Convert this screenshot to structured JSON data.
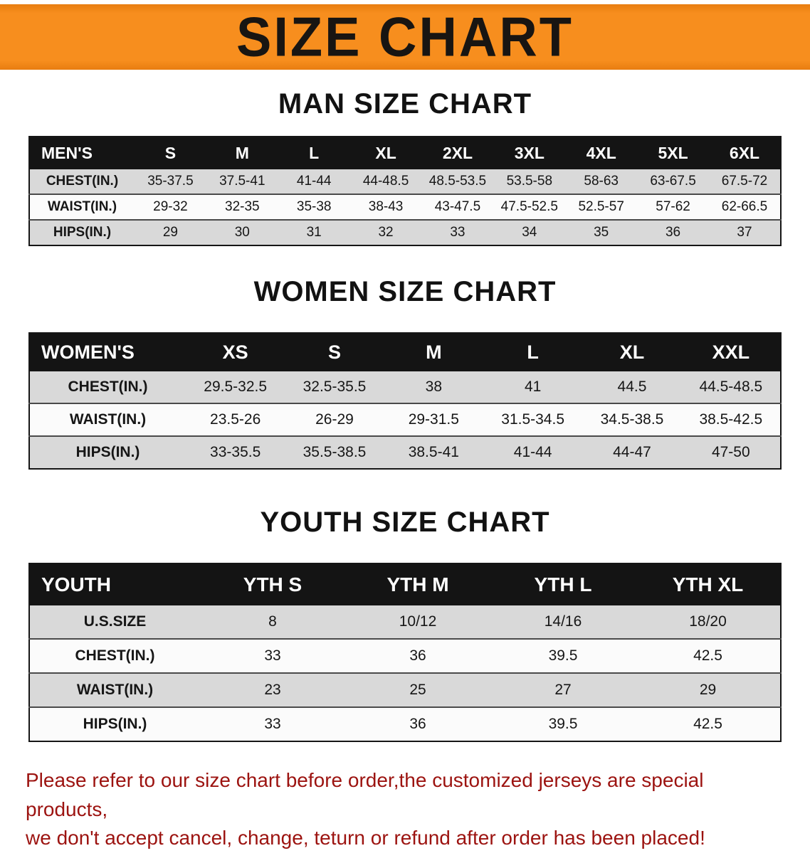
{
  "banner": {
    "title": "SIZE CHART",
    "bg_color": "#f78e1e",
    "text_color": "#181512"
  },
  "sections": {
    "men": {
      "heading": "MAN SIZE CHART",
      "table": {
        "header": [
          "MEN'S",
          "S",
          "M",
          "L",
          "XL",
          "2XL",
          "3XL",
          "4XL",
          "5XL",
          "6XL"
        ],
        "rows": [
          [
            "CHEST(IN.)",
            "35-37.5",
            "37.5-41",
            "41-44",
            "44-48.5",
            "48.5-53.5",
            "53.5-58",
            "58-63",
            "63-67.5",
            "67.5-72"
          ],
          [
            "WAIST(IN.)",
            "29-32",
            "32-35",
            "35-38",
            "38-43",
            "43-47.5",
            "47.5-52.5",
            "52.5-57",
            "57-62",
            "62-66.5"
          ],
          [
            "HIPS(IN.)",
            "29",
            "30",
            "31",
            "32",
            "33",
            "34",
            "35",
            "36",
            "37"
          ]
        ]
      }
    },
    "women": {
      "heading": "WOMEN SIZE CHART",
      "table": {
        "header": [
          "WOMEN'S",
          "XS",
          "S",
          "M",
          "L",
          "XL",
          "XXL"
        ],
        "rows": [
          [
            "CHEST(IN.)",
            "29.5-32.5",
            "32.5-35.5",
            "38",
            "41",
            "44.5",
            "44.5-48.5"
          ],
          [
            "WAIST(IN.)",
            "23.5-26",
            "26-29",
            "29-31.5",
            "31.5-34.5",
            "34.5-38.5",
            "38.5-42.5"
          ],
          [
            "HIPS(IN.)",
            "33-35.5",
            "35.5-38.5",
            "38.5-41",
            "41-44",
            "44-47",
            "47-50"
          ]
        ]
      }
    },
    "youth": {
      "heading": "YOUTH SIZE CHART",
      "table": {
        "header": [
          "YOUTH",
          "YTH S",
          "YTH M",
          "YTH L",
          "YTH XL"
        ],
        "rows": [
          [
            "U.S.SIZE",
            "8",
            "10/12",
            "14/16",
            "18/20"
          ],
          [
            "CHEST(IN.)",
            "33",
            "36",
            "39.5",
            "42.5"
          ],
          [
            "WAIST(IN.)",
            "23",
            "25",
            "27",
            "29"
          ],
          [
            "HIPS(IN.)",
            "33",
            "36",
            "39.5",
            "42.5"
          ]
        ]
      }
    }
  },
  "disclaimer": {
    "line1": "Please refer to our size chart before order,the customized jerseys are special products,",
    "line2": "we don't accept cancel, change, teturn or refund after order has been placed!",
    "color": "#9c1310"
  }
}
